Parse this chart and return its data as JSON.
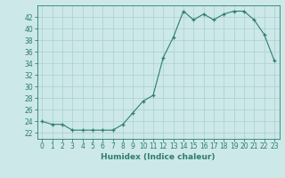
{
  "x": [
    0,
    1,
    2,
    3,
    4,
    5,
    6,
    7,
    8,
    9,
    10,
    11,
    12,
    13,
    14,
    15,
    16,
    17,
    18,
    19,
    20,
    21,
    22,
    23
  ],
  "y": [
    24,
    23.5,
    23.5,
    22.5,
    22.5,
    22.5,
    22.5,
    22.5,
    23.5,
    25.5,
    27.5,
    28.5,
    35,
    38.5,
    43,
    41.5,
    42.5,
    41.5,
    42.5,
    43,
    43,
    41.5,
    39,
    34.5
  ],
  "xlabel": "Humidex (Indice chaleur)",
  "xlim": [
    -0.5,
    23.5
  ],
  "ylim": [
    21,
    44
  ],
  "yticks": [
    22,
    24,
    26,
    28,
    30,
    32,
    34,
    36,
    38,
    40,
    42
  ],
  "xticks": [
    0,
    1,
    2,
    3,
    4,
    5,
    6,
    7,
    8,
    9,
    10,
    11,
    12,
    13,
    14,
    15,
    16,
    17,
    18,
    19,
    20,
    21,
    22,
    23
  ],
  "line_color": "#2e7d6e",
  "marker": "+",
  "bg_color": "#cce8e8",
  "grid_color": "#aacfcf",
  "tick_fontsize": 5.5,
  "xlabel_fontsize": 6.5
}
